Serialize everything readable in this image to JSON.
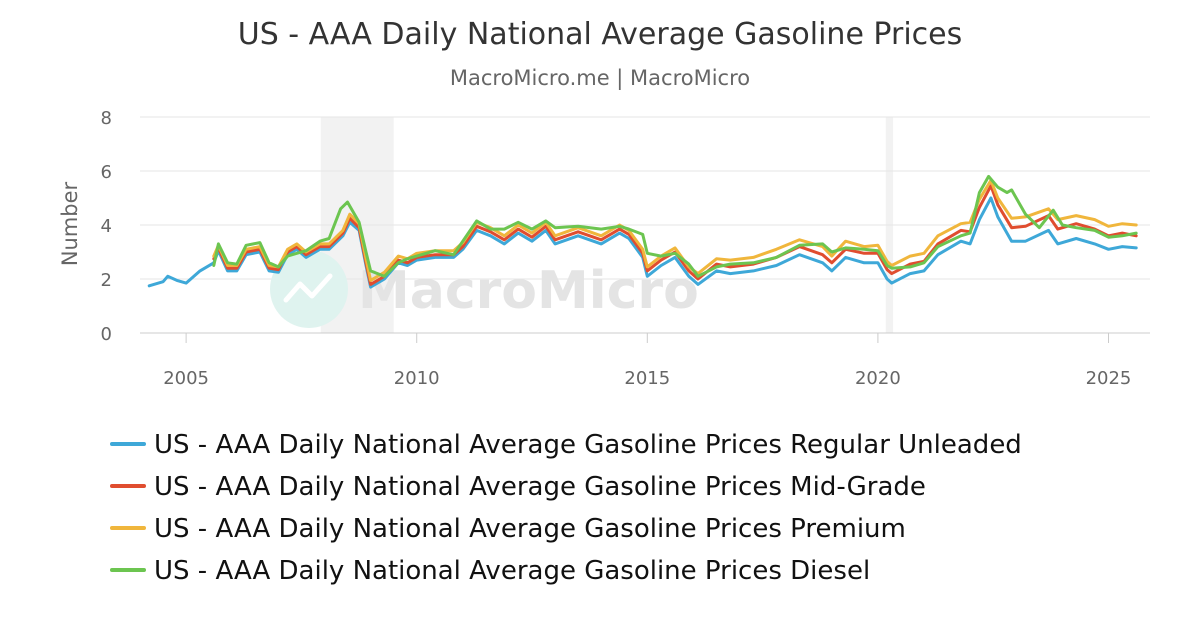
{
  "chart_data": {
    "type": "line",
    "title": "US - AAA Daily National Average Gasoline Prices",
    "subtitle": "MacroMicro.me | MacroMicro",
    "ylabel": "Number",
    "xlim": [
      2004.0,
      2025.9
    ],
    "ylim": [
      0,
      8
    ],
    "y_ticks": [
      "0",
      "2",
      "4",
      "6",
      "8"
    ],
    "x_ticks": [
      "2005",
      "2010",
      "2015",
      "2020",
      "2025"
    ],
    "x_tick_values": [
      2005,
      2010,
      2015,
      2020,
      2025
    ],
    "grid": true,
    "legend_position": "bottom",
    "recession_bands": [
      [
        2007.92,
        2009.5
      ],
      [
        2020.17,
        2020.33
      ]
    ],
    "watermark": "MacroMicro",
    "series": [
      {
        "name": "US - AAA Daily National Average Gasoline Prices Regular Unleaded",
        "color": "#3ea8d8",
        "x": [
          2004.2,
          2004.5,
          2004.6,
          2004.8,
          2005.0,
          2005.3,
          2005.6,
          2005.7,
          2005.9,
          2006.1,
          2006.3,
          2006.6,
          2006.8,
          2007.0,
          2007.2,
          2007.4,
          2007.6,
          2007.9,
          2008.1,
          2008.4,
          2008.55,
          2008.75,
          2008.9,
          2009.0,
          2009.3,
          2009.6,
          2009.8,
          2010.0,
          2010.4,
          2010.8,
          2011.0,
          2011.3,
          2011.6,
          2011.9,
          2012.2,
          2012.5,
          2012.8,
          2013.0,
          2013.5,
          2014.0,
          2014.4,
          2014.6,
          2014.9,
          2015.0,
          2015.3,
          2015.6,
          2015.9,
          2016.1,
          2016.5,
          2016.8,
          2017.3,
          2017.8,
          2018.3,
          2018.8,
          2019.0,
          2019.3,
          2019.7,
          2020.0,
          2020.2,
          2020.3,
          2020.7,
          2021.0,
          2021.3,
          2021.8,
          2022.0,
          2022.2,
          2022.45,
          2022.6,
          2022.9,
          2023.2,
          2023.7,
          2023.9,
          2024.3,
          2024.7,
          2025.0,
          2025.3,
          2025.6
        ],
        "values": [
          1.75,
          1.9,
          2.1,
          1.95,
          1.85,
          2.3,
          2.6,
          3.05,
          2.3,
          2.3,
          2.9,
          3.0,
          2.3,
          2.25,
          2.9,
          3.1,
          2.8,
          3.1,
          3.1,
          3.6,
          4.1,
          3.8,
          2.5,
          1.7,
          2.0,
          2.6,
          2.5,
          2.7,
          2.8,
          2.8,
          3.1,
          3.8,
          3.6,
          3.3,
          3.7,
          3.4,
          3.8,
          3.3,
          3.6,
          3.3,
          3.7,
          3.5,
          2.8,
          2.1,
          2.5,
          2.8,
          2.1,
          1.8,
          2.3,
          2.2,
          2.3,
          2.5,
          2.9,
          2.6,
          2.3,
          2.8,
          2.6,
          2.6,
          2.0,
          1.85,
          2.2,
          2.3,
          2.9,
          3.4,
          3.3,
          4.2,
          5.0,
          4.3,
          3.4,
          3.4,
          3.8,
          3.3,
          3.5,
          3.3,
          3.1,
          3.2,
          3.15
        ]
      },
      {
        "name": "US - AAA Daily National Average Gasoline Prices Mid-Grade",
        "color": "#e04d2f",
        "x": [
          2005.6,
          2005.7,
          2005.9,
          2006.1,
          2006.3,
          2006.6,
          2006.8,
          2007.0,
          2007.2,
          2007.4,
          2007.6,
          2007.9,
          2008.1,
          2008.4,
          2008.55,
          2008.75,
          2008.9,
          2009.0,
          2009.3,
          2009.6,
          2009.8,
          2010.0,
          2010.4,
          2010.8,
          2011.0,
          2011.3,
          2011.6,
          2011.9,
          2012.2,
          2012.5,
          2012.8,
          2013.0,
          2013.5,
          2014.0,
          2014.4,
          2014.6,
          2014.9,
          2015.0,
          2015.3,
          2015.6,
          2015.9,
          2016.1,
          2016.5,
          2016.8,
          2017.3,
          2017.8,
          2018.3,
          2018.8,
          2019.0,
          2019.3,
          2019.7,
          2020.0,
          2020.2,
          2020.3,
          2020.7,
          2021.0,
          2021.3,
          2021.8,
          2022.0,
          2022.2,
          2022.45,
          2022.6,
          2022.9,
          2023.2,
          2023.7,
          2023.9,
          2024.3,
          2024.7,
          2025.0,
          2025.3,
          2025.6
        ],
        "values": [
          2.75,
          3.15,
          2.4,
          2.4,
          3.0,
          3.1,
          2.4,
          2.35,
          3.0,
          3.2,
          2.9,
          3.2,
          3.2,
          3.7,
          4.25,
          3.9,
          2.6,
          1.8,
          2.1,
          2.7,
          2.6,
          2.8,
          2.9,
          2.9,
          3.2,
          3.95,
          3.75,
          3.45,
          3.85,
          3.55,
          3.95,
          3.45,
          3.75,
          3.45,
          3.85,
          3.65,
          2.95,
          2.3,
          2.7,
          3.0,
          2.3,
          2.0,
          2.55,
          2.45,
          2.55,
          2.8,
          3.2,
          2.9,
          2.6,
          3.1,
          2.95,
          2.95,
          2.35,
          2.2,
          2.55,
          2.65,
          3.3,
          3.8,
          3.75,
          4.65,
          5.45,
          4.75,
          3.9,
          3.95,
          4.35,
          3.85,
          4.05,
          3.85,
          3.6,
          3.7,
          3.6
        ]
      },
      {
        "name": "US - AAA Daily National Average Gasoline Prices Premium",
        "color": "#f0b63c",
        "x": [
          2005.6,
          2005.7,
          2005.9,
          2006.1,
          2006.3,
          2006.6,
          2006.8,
          2007.0,
          2007.2,
          2007.4,
          2007.6,
          2007.9,
          2008.1,
          2008.4,
          2008.55,
          2008.75,
          2008.9,
          2009.0,
          2009.3,
          2009.6,
          2009.8,
          2010.0,
          2010.4,
          2010.8,
          2011.0,
          2011.3,
          2011.6,
          2011.9,
          2012.2,
          2012.5,
          2012.8,
          2013.0,
          2013.5,
          2014.0,
          2014.4,
          2014.6,
          2014.9,
          2015.0,
          2015.3,
          2015.6,
          2015.9,
          2016.1,
          2016.5,
          2016.8,
          2017.3,
          2017.8,
          2018.3,
          2018.8,
          2019.0,
          2019.3,
          2019.7,
          2020.0,
          2020.2,
          2020.3,
          2020.7,
          2021.0,
          2021.3,
          2021.8,
          2022.0,
          2022.2,
          2022.45,
          2022.6,
          2022.9,
          2023.2,
          2023.7,
          2023.9,
          2024.3,
          2024.7,
          2025.0,
          2025.3,
          2025.6
        ],
        "values": [
          2.85,
          3.25,
          2.5,
          2.5,
          3.1,
          3.2,
          2.5,
          2.45,
          3.1,
          3.3,
          3.0,
          3.3,
          3.3,
          3.8,
          4.4,
          4.05,
          2.75,
          1.95,
          2.25,
          2.85,
          2.75,
          2.95,
          3.05,
          3.05,
          3.35,
          4.1,
          3.9,
          3.6,
          4.0,
          3.7,
          4.1,
          3.6,
          3.9,
          3.6,
          4.0,
          3.8,
          3.1,
          2.45,
          2.85,
          3.15,
          2.45,
          2.2,
          2.75,
          2.7,
          2.8,
          3.1,
          3.45,
          3.2,
          2.85,
          3.4,
          3.2,
          3.25,
          2.65,
          2.5,
          2.85,
          2.95,
          3.6,
          4.05,
          4.1,
          4.95,
          5.65,
          5.0,
          4.25,
          4.3,
          4.6,
          4.2,
          4.35,
          4.2,
          3.95,
          4.05,
          4.0
        ]
      },
      {
        "name": "US - AAA Daily National Average Gasoline Prices Diesel",
        "color": "#6cc550",
        "x": [
          2005.6,
          2005.7,
          2005.9,
          2006.1,
          2006.3,
          2006.6,
          2006.8,
          2007.0,
          2007.2,
          2007.4,
          2007.6,
          2007.9,
          2008.1,
          2008.35,
          2008.5,
          2008.75,
          2008.9,
          2009.0,
          2009.3,
          2009.6,
          2009.8,
          2010.0,
          2010.4,
          2010.8,
          2011.0,
          2011.3,
          2011.6,
          2011.9,
          2012.2,
          2012.5,
          2012.8,
          2013.0,
          2013.5,
          2014.0,
          2014.4,
          2014.6,
          2014.9,
          2015.0,
          2015.3,
          2015.6,
          2015.9,
          2016.1,
          2016.5,
          2016.8,
          2017.3,
          2017.8,
          2018.3,
          2018.8,
          2019.0,
          2019.3,
          2019.7,
          2020.0,
          2020.2,
          2020.3,
          2020.7,
          2021.0,
          2021.3,
          2021.8,
          2022.0,
          2022.2,
          2022.4,
          2022.6,
          2022.8,
          2022.9,
          2023.2,
          2023.5,
          2023.8,
          2024.0,
          2024.3,
          2024.7,
          2025.0,
          2025.3,
          2025.6
        ],
        "values": [
          2.5,
          3.3,
          2.6,
          2.55,
          3.25,
          3.35,
          2.6,
          2.45,
          2.85,
          2.95,
          3.05,
          3.4,
          3.5,
          4.6,
          4.85,
          4.1,
          3.0,
          2.3,
          2.1,
          2.6,
          2.75,
          2.85,
          3.05,
          2.9,
          3.4,
          4.15,
          3.85,
          3.85,
          4.1,
          3.85,
          4.15,
          3.9,
          3.95,
          3.85,
          3.95,
          3.85,
          3.65,
          2.95,
          2.85,
          2.95,
          2.55,
          2.1,
          2.45,
          2.55,
          2.6,
          2.8,
          3.25,
          3.3,
          3.0,
          3.15,
          3.1,
          3.05,
          2.5,
          2.4,
          2.45,
          2.6,
          3.2,
          3.6,
          3.7,
          5.2,
          5.8,
          5.4,
          5.2,
          5.3,
          4.4,
          3.9,
          4.55,
          4.0,
          3.9,
          3.8,
          3.55,
          3.6,
          3.7
        ]
      }
    ]
  }
}
